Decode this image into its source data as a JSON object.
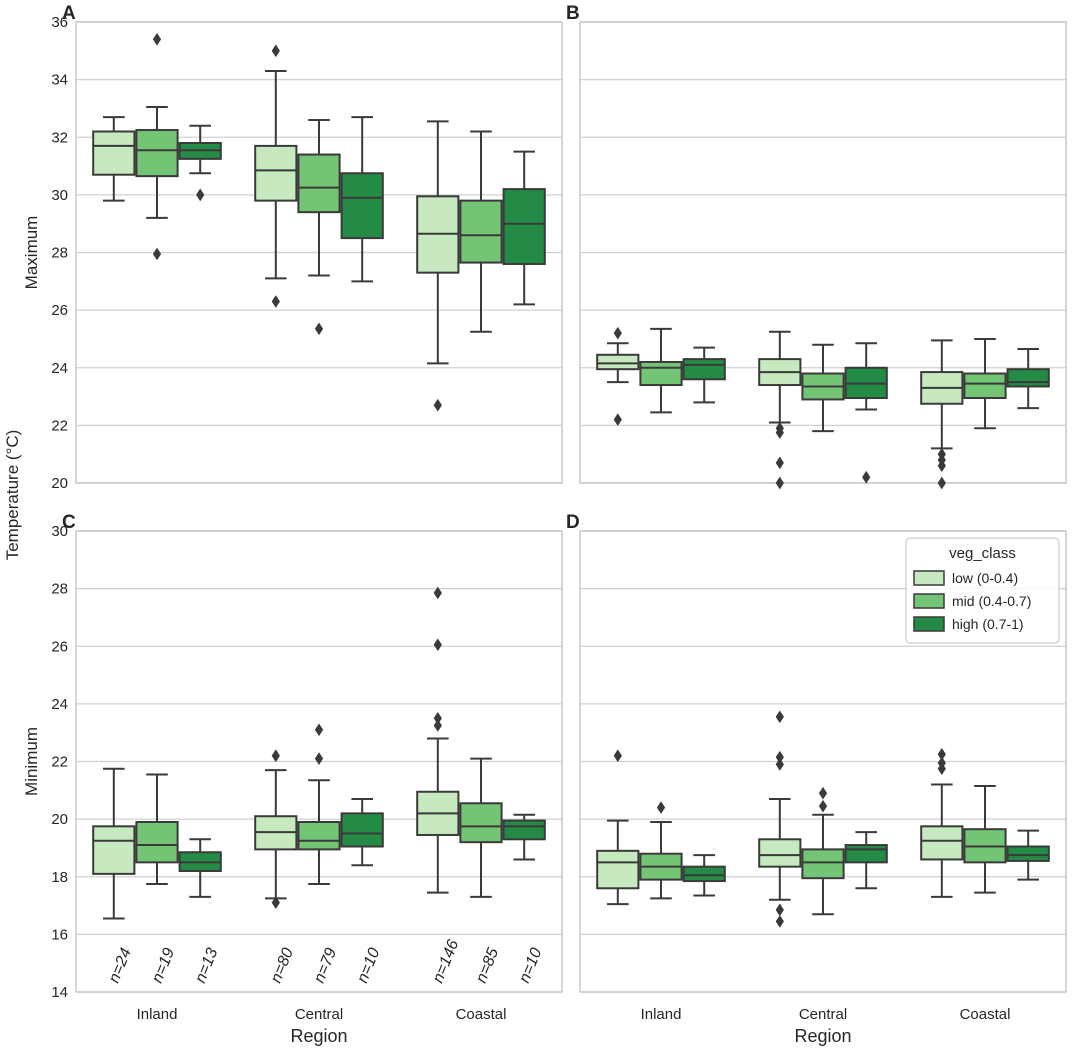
{
  "figure": {
    "ylabel": "Temperature (°C)",
    "xlabel": "Region"
  },
  "colors": {
    "low": "#c7e9c0",
    "mid": "#74c476",
    "high": "#238b45",
    "edge": "#3a3a3a",
    "grid": "#d0d0d0",
    "frame": "#c8c8c8"
  },
  "legend": {
    "title": "veg_class",
    "entries": [
      "low (0-0.4)",
      "mid (0.4-0.7)",
      "high (0.7-1)"
    ],
    "placement": "top-right of panel D"
  },
  "chart_data": [
    {
      "panel": "A",
      "type": "box",
      "ylabel": "Maximum",
      "ylim": [
        20,
        36
      ],
      "yticks": [
        20,
        22,
        24,
        26,
        28,
        30,
        32,
        34,
        36
      ],
      "categories": [
        "Inland",
        "Central",
        "Coastal"
      ],
      "show_xticklabels": false,
      "series": [
        {
          "name": "low (0-0.4)",
          "color_key": "low",
          "boxes": [
            {
              "q1": 30.7,
              "med": 31.7,
              "q3": 32.2,
              "wlo": 29.8,
              "whi": 32.7,
              "fliers": []
            },
            {
              "q1": 29.8,
              "med": 30.85,
              "q3": 31.7,
              "wlo": 27.1,
              "whi": 34.3,
              "fliers": [
                35.0,
                26.3
              ]
            },
            {
              "q1": 27.3,
              "med": 28.65,
              "q3": 29.95,
              "wlo": 24.15,
              "whi": 32.55,
              "fliers": [
                22.7
              ]
            }
          ]
        },
        {
          "name": "mid (0.4-0.7)",
          "color_key": "mid",
          "boxes": [
            {
              "q1": 30.65,
              "med": 31.55,
              "q3": 32.25,
              "wlo": 29.2,
              "whi": 33.05,
              "fliers": [
                35.4,
                27.95
              ]
            },
            {
              "q1": 29.4,
              "med": 30.25,
              "q3": 31.4,
              "wlo": 27.2,
              "whi": 32.6,
              "fliers": [
                25.35
              ]
            },
            {
              "q1": 27.65,
              "med": 28.6,
              "q3": 29.8,
              "wlo": 25.25,
              "whi": 32.2,
              "fliers": []
            }
          ]
        },
        {
          "name": "high (0.7-1)",
          "color_key": "high",
          "boxes": [
            {
              "q1": 31.25,
              "med": 31.55,
              "q3": 31.8,
              "wlo": 30.75,
              "whi": 32.4,
              "fliers": [
                30.0
              ]
            },
            {
              "q1": 28.5,
              "med": 29.9,
              "q3": 30.75,
              "wlo": 27.0,
              "whi": 32.7,
              "fliers": []
            },
            {
              "q1": 27.6,
              "med": 29.0,
              "q3": 30.2,
              "wlo": 26.2,
              "whi": 31.5,
              "fliers": []
            }
          ]
        }
      ]
    },
    {
      "panel": "B",
      "type": "box",
      "ylabel": "",
      "ylim": [
        20,
        36
      ],
      "yticks": [
        20,
        22,
        24,
        26,
        28,
        30,
        32,
        34,
        36
      ],
      "categories": [
        "Inland",
        "Central",
        "Coastal"
      ],
      "show_xticklabels": false,
      "series": [
        {
          "name": "low (0-0.4)",
          "color_key": "low",
          "boxes": [
            {
              "q1": 23.95,
              "med": 24.15,
              "q3": 24.45,
              "wlo": 23.5,
              "whi": 24.85,
              "fliers": [
                25.2,
                22.2
              ]
            },
            {
              "q1": 23.4,
              "med": 23.85,
              "q3": 24.3,
              "wlo": 22.1,
              "whi": 25.25,
              "fliers": [
                21.9,
                21.75,
                20.7,
                20.0
              ]
            },
            {
              "q1": 22.75,
              "med": 23.3,
              "q3": 23.85,
              "wlo": 21.2,
              "whi": 24.95,
              "fliers": [
                21.0,
                20.8,
                20.6,
                20.0
              ]
            }
          ]
        },
        {
          "name": "mid (0.4-0.7)",
          "color_key": "mid",
          "boxes": [
            {
              "q1": 23.4,
              "med": 24.0,
              "q3": 24.2,
              "wlo": 22.45,
              "whi": 25.35,
              "fliers": []
            },
            {
              "q1": 22.9,
              "med": 23.35,
              "q3": 23.8,
              "wlo": 21.8,
              "whi": 24.8,
              "fliers": []
            },
            {
              "q1": 22.95,
              "med": 23.45,
              "q3": 23.8,
              "wlo": 21.9,
              "whi": 25.0,
              "fliers": []
            }
          ]
        },
        {
          "name": "high (0.7-1)",
          "color_key": "high",
          "boxes": [
            {
              "q1": 23.6,
              "med": 24.1,
              "q3": 24.3,
              "wlo": 22.8,
              "whi": 24.7,
              "fliers": []
            },
            {
              "q1": 22.95,
              "med": 23.45,
              "q3": 24.0,
              "wlo": 22.55,
              "whi": 24.85,
              "fliers": [
                20.2
              ]
            },
            {
              "q1": 23.35,
              "med": 23.5,
              "q3": 23.95,
              "wlo": 22.6,
              "whi": 24.65,
              "fliers": []
            }
          ]
        }
      ]
    },
    {
      "panel": "C",
      "type": "box",
      "ylabel": "Minimum",
      "ylim": [
        14,
        30
      ],
      "yticks": [
        14,
        16,
        18,
        20,
        22,
        24,
        26,
        28,
        30
      ],
      "categories": [
        "Inland",
        "Central",
        "Coastal"
      ],
      "show_xticklabels": true,
      "n_labels": [
        [
          "n=24",
          "n=19",
          "n=13"
        ],
        [
          "n=80",
          "n=79",
          "n=10"
        ],
        [
          "n=146",
          "n=85",
          "n=10"
        ]
      ],
      "series": [
        {
          "name": "low (0-0.4)",
          "color_key": "low",
          "boxes": [
            {
              "q1": 18.1,
              "med": 19.25,
              "q3": 19.75,
              "wlo": 16.55,
              "whi": 21.75,
              "fliers": []
            },
            {
              "q1": 18.95,
              "med": 19.55,
              "q3": 20.1,
              "wlo": 17.25,
              "whi": 21.7,
              "fliers": [
                22.2,
                17.1
              ]
            },
            {
              "q1": 19.45,
              "med": 20.2,
              "q3": 20.95,
              "wlo": 17.45,
              "whi": 22.8,
              "fliers": [
                27.85,
                26.05,
                23.5,
                23.25
              ]
            }
          ]
        },
        {
          "name": "mid (0.4-0.7)",
          "color_key": "mid",
          "boxes": [
            {
              "q1": 18.5,
              "med": 19.1,
              "q3": 19.9,
              "wlo": 17.75,
              "whi": 21.55,
              "fliers": []
            },
            {
              "q1": 18.95,
              "med": 19.25,
              "q3": 19.9,
              "wlo": 17.75,
              "whi": 21.35,
              "fliers": [
                23.1,
                22.1
              ]
            },
            {
              "q1": 19.2,
              "med": 19.75,
              "q3": 20.55,
              "wlo": 17.3,
              "whi": 22.1,
              "fliers": []
            }
          ]
        },
        {
          "name": "high (0.7-1)",
          "color_key": "high",
          "boxes": [
            {
              "q1": 18.2,
              "med": 18.5,
              "q3": 18.85,
              "wlo": 17.3,
              "whi": 19.3,
              "fliers": []
            },
            {
              "q1": 19.05,
              "med": 19.5,
              "q3": 20.2,
              "wlo": 18.4,
              "whi": 20.7,
              "fliers": []
            },
            {
              "q1": 19.3,
              "med": 19.75,
              "q3": 19.95,
              "wlo": 18.6,
              "whi": 20.15,
              "fliers": []
            }
          ]
        }
      ]
    },
    {
      "panel": "D",
      "type": "box",
      "ylabel": "",
      "ylim": [
        14,
        30
      ],
      "yticks": [
        14,
        16,
        18,
        20,
        22,
        24,
        26,
        28,
        30
      ],
      "categories": [
        "Inland",
        "Central",
        "Coastal"
      ],
      "show_xticklabels": true,
      "series": [
        {
          "name": "low (0-0.4)",
          "color_key": "low",
          "boxes": [
            {
              "q1": 17.6,
              "med": 18.5,
              "q3": 18.9,
              "wlo": 17.05,
              "whi": 19.95,
              "fliers": [
                22.2
              ]
            },
            {
              "q1": 18.35,
              "med": 18.75,
              "q3": 19.3,
              "wlo": 17.2,
              "whi": 20.7,
              "fliers": [
                23.55,
                22.15,
                21.9,
                16.85,
                16.45
              ]
            },
            {
              "q1": 18.6,
              "med": 19.25,
              "q3": 19.75,
              "wlo": 17.3,
              "whi": 21.2,
              "fliers": [
                22.25,
                21.95,
                21.75
              ]
            }
          ]
        },
        {
          "name": "mid (0.4-0.7)",
          "color_key": "mid",
          "boxes": [
            {
              "q1": 17.9,
              "med": 18.35,
              "q3": 18.8,
              "wlo": 17.25,
              "whi": 19.9,
              "fliers": [
                20.4
              ]
            },
            {
              "q1": 17.95,
              "med": 18.5,
              "q3": 18.95,
              "wlo": 16.7,
              "whi": 20.15,
              "fliers": [
                20.9,
                20.45
              ]
            },
            {
              "q1": 18.5,
              "med": 19.05,
              "q3": 19.65,
              "wlo": 17.45,
              "whi": 21.15,
              "fliers": []
            }
          ]
        },
        {
          "name": "high (0.7-1)",
          "color_key": "high",
          "boxes": [
            {
              "q1": 17.85,
              "med": 18.05,
              "q3": 18.35,
              "wlo": 17.35,
              "whi": 18.75,
              "fliers": []
            },
            {
              "q1": 18.5,
              "med": 18.95,
              "q3": 19.1,
              "wlo": 17.6,
              "whi": 19.55,
              "fliers": []
            },
            {
              "q1": 18.55,
              "med": 18.75,
              "q3": 19.05,
              "wlo": 17.9,
              "whi": 19.6,
              "fliers": []
            }
          ]
        }
      ]
    }
  ]
}
